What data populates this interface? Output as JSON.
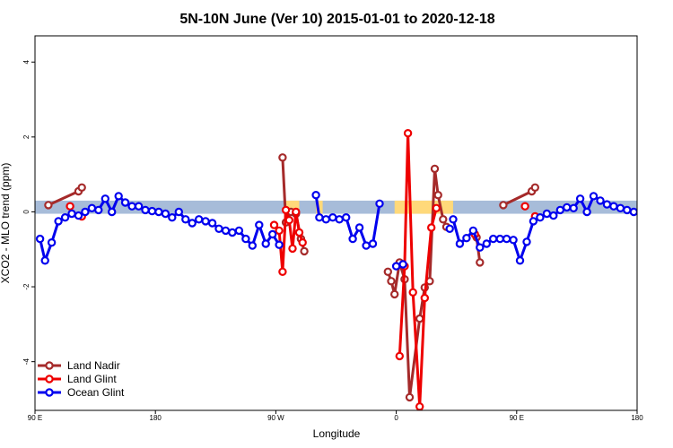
{
  "chart_data": {
    "type": "line",
    "title": "5N-10N June (Ver 10)   2015-01-01 to 2020-12-18",
    "xlabel": "Longitude",
    "ylabel": "XCO2 - MLO trend (ppm)",
    "xlim": [
      90,
      450
    ],
    "ylim": [
      -5.3,
      4.7
    ],
    "x_ticks": [
      {
        "value": 90,
        "label": "90 E"
      },
      {
        "value": 162,
        "label": "180"
      },
      {
        "value": 234,
        "label": "90 W"
      },
      {
        "value": 306,
        "label": "0"
      },
      {
        "value": 378,
        "label": "90 E"
      },
      {
        "value": 450,
        "label": "180"
      }
    ],
    "y_ticks": [
      {
        "value": -4,
        "label": "-4"
      },
      {
        "value": -2,
        "label": "-2"
      },
      {
        "value": 0,
        "label": "0"
      },
      {
        "value": 2,
        "label": "2"
      },
      {
        "value": 4,
        "label": "4"
      }
    ],
    "background_band": {
      "ymin": -0.05,
      "ymax": 0.3,
      "base_color": "#a7bcd9",
      "land_color": "#ffd97a",
      "land_segments": [
        [
          240,
          248
        ],
        [
          258,
          262
        ],
        [
          305,
          328
        ],
        [
          328,
          340
        ]
      ]
    },
    "legend_position": "bottom-left",
    "series": [
      {
        "name": "Land Nadir",
        "color": "#a52a2a",
        "segments": [
          [
            [
              98,
              0.18
            ],
            [
              116,
              0.55
            ],
            [
              118,
              0.65
            ]
          ],
          [
            [
              238,
              1.45
            ],
            [
              240,
              -0.28
            ],
            [
              243,
              0.0
            ],
            [
              246,
              -0.05
            ],
            [
              249,
              -0.72
            ],
            [
              251,
              -1.05
            ]
          ],
          [
            [
              301,
              -1.6
            ],
            [
              303,
              -1.85
            ],
            [
              305,
              -2.2
            ],
            [
              308,
              -1.35
            ],
            [
              311,
              -1.8
            ],
            [
              314,
              -4.95
            ],
            [
              320,
              -2.85
            ],
            [
              323,
              -2.02
            ],
            [
              326,
              -1.85
            ],
            [
              329,
              1.15
            ],
            [
              331,
              0.45
            ],
            [
              334,
              -0.2
            ],
            [
              336,
              -0.4
            ]
          ],
          [
            [
              354,
              -0.68
            ],
            [
              356,
              -1.35
            ]
          ],
          [
            [
              370,
              0.18
            ],
            [
              387,
              0.55
            ],
            [
              389,
              0.65
            ]
          ]
        ]
      },
      {
        "name": "Land Glint",
        "color": "#ee0000",
        "segments": [
          [
            [
              111,
              0.15
            ]
          ],
          [
            [
              118,
              -0.12
            ]
          ],
          [
            [
              233,
              -0.35
            ],
            [
              236,
              -0.5
            ],
            [
              238,
              -1.6
            ],
            [
              240,
              0.05
            ],
            [
              242,
              -0.22
            ],
            [
              244,
              -0.98
            ],
            [
              246,
              0.0
            ],
            [
              248,
              -0.55
            ],
            [
              250,
              -0.82
            ]
          ],
          [
            [
              308,
              -3.85
            ],
            [
              311,
              -1.45
            ],
            [
              313,
              2.1
            ],
            [
              316,
              -2.15
            ],
            [
              320,
              -5.2
            ],
            [
              323,
              -2.3
            ],
            [
              327,
              -0.42
            ],
            [
              330,
              0.1
            ]
          ],
          [
            [
              353,
              -0.6
            ]
          ],
          [
            [
              383,
              0.15
            ]
          ],
          [
            [
              389,
              -0.12
            ]
          ]
        ]
      },
      {
        "name": "Ocean Glint",
        "color": "#0000ee",
        "segments": [
          [
            [
              93,
              -0.72
            ],
            [
              96,
              -1.3
            ],
            [
              100,
              -0.82
            ],
            [
              104,
              -0.25
            ],
            [
              108,
              -0.15
            ],
            [
              112,
              -0.05
            ],
            [
              116,
              -0.1
            ],
            [
              120,
              0.0
            ],
            [
              124,
              0.1
            ],
            [
              128,
              0.05
            ],
            [
              132,
              0.35
            ],
            [
              136,
              0.0
            ],
            [
              140,
              0.42
            ],
            [
              144,
              0.25
            ],
            [
              148,
              0.15
            ],
            [
              152,
              0.15
            ],
            [
              156,
              0.05
            ],
            [
              160,
              0.02
            ],
            [
              164,
              0.0
            ],
            [
              168,
              -0.05
            ],
            [
              172,
              -0.15
            ],
            [
              176,
              0.0
            ],
            [
              180,
              -0.2
            ],
            [
              184,
              -0.3
            ],
            [
              188,
              -0.2
            ],
            [
              192,
              -0.25
            ],
            [
              196,
              -0.3
            ],
            [
              200,
              -0.45
            ],
            [
              204,
              -0.5
            ],
            [
              208,
              -0.55
            ],
            [
              212,
              -0.5
            ],
            [
              216,
              -0.72
            ],
            [
              220,
              -0.9
            ],
            [
              224,
              -0.35
            ],
            [
              228,
              -0.85
            ],
            [
              232,
              -0.6
            ],
            [
              236,
              -0.88
            ]
          ],
          [
            [
              258,
              0.45
            ],
            [
              260,
              -0.15
            ],
            [
              264,
              -0.2
            ],
            [
              268,
              -0.15
            ],
            [
              272,
              -0.2
            ],
            [
              276,
              -0.15
            ],
            [
              280,
              -0.72
            ],
            [
              284,
              -0.42
            ],
            [
              288,
              -0.9
            ],
            [
              292,
              -0.85
            ],
            [
              296,
              0.22
            ]
          ],
          [
            [
              306,
              -1.45
            ],
            [
              310,
              -1.4
            ]
          ],
          [
            [
              340,
              -0.2
            ],
            [
              344,
              -0.85
            ],
            [
              348,
              -0.7
            ],
            [
              352,
              -0.5
            ],
            [
              356,
              -0.95
            ],
            [
              360,
              -0.85
            ],
            [
              364,
              -0.72
            ],
            [
              368,
              -0.72
            ],
            [
              372,
              -0.72
            ],
            [
              376,
              -0.75
            ],
            [
              380,
              -1.3
            ],
            [
              384,
              -0.8
            ],
            [
              388,
              -0.25
            ],
            [
              392,
              -0.15
            ],
            [
              396,
              -0.05
            ],
            [
              400,
              -0.1
            ],
            [
              404,
              0.05
            ],
            [
              408,
              0.12
            ],
            [
              412,
              0.1
            ],
            [
              416,
              0.35
            ],
            [
              420,
              0.0
            ],
            [
              424,
              0.42
            ],
            [
              428,
              0.3
            ],
            [
              432,
              0.2
            ],
            [
              436,
              0.15
            ],
            [
              440,
              0.1
            ],
            [
              444,
              0.05
            ],
            [
              448,
              0.0
            ]
          ],
          [
            [
              338,
              -0.45
            ]
          ]
        ]
      }
    ]
  }
}
